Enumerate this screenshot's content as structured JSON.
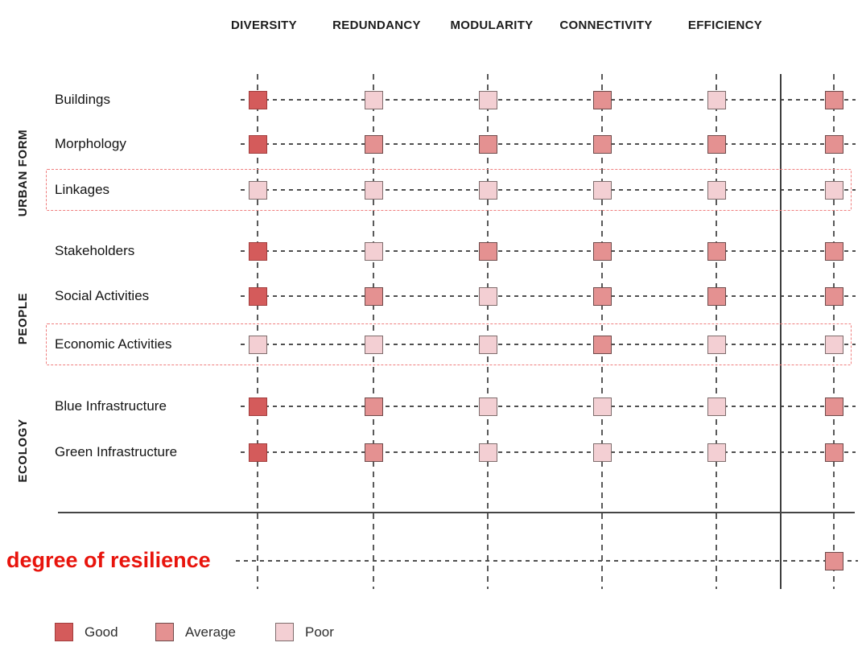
{
  "colors": {
    "good": {
      "fill": "#d45b5b",
      "border": "#a13e3d"
    },
    "average": {
      "fill": "#e49191",
      "border": "#6e4a4a"
    },
    "poor": {
      "fill": "#f3cfd3",
      "border": "#7e6c6c"
    },
    "highlight_box": "#ef7e7e",
    "degree_text": "#e8140c"
  },
  "chart_data": {
    "type": "heatmap",
    "columns": [
      "DIVERSITY",
      "REDUNDANCY",
      "MODULARITY",
      "CONNECTIVITY",
      "EFFICIENCY"
    ],
    "extra_column_label": "degree of resilience",
    "groups": [
      {
        "label": "URBAN FORM",
        "rows": [
          {
            "label": "Buildings",
            "highlighted": false,
            "values": [
              "good",
              "poor",
              "poor",
              "average",
              "poor"
            ],
            "resilience": "average"
          },
          {
            "label": "Morphology",
            "highlighted": false,
            "values": [
              "good",
              "average",
              "average",
              "average",
              "average"
            ],
            "resilience": "average"
          },
          {
            "label": "Linkages",
            "highlighted": true,
            "values": [
              "poor",
              "poor",
              "poor",
              "poor",
              "poor"
            ],
            "resilience": "poor"
          }
        ]
      },
      {
        "label": "PEOPLE",
        "rows": [
          {
            "label": "Stakeholders",
            "highlighted": false,
            "values": [
              "good",
              "poor",
              "average",
              "average",
              "average"
            ],
            "resilience": "average"
          },
          {
            "label": "Social Activities",
            "highlighted": false,
            "values": [
              "good",
              "average",
              "poor",
              "average",
              "average"
            ],
            "resilience": "average"
          },
          {
            "label": "Economic Activities",
            "highlighted": true,
            "values": [
              "poor",
              "poor",
              "poor",
              "average",
              "poor"
            ],
            "resilience": "poor"
          }
        ]
      },
      {
        "label": "ECOLOGY",
        "rows": [
          {
            "label": "Blue Infrastructure",
            "highlighted": false,
            "values": [
              "good",
              "average",
              "poor",
              "poor",
              "poor"
            ],
            "resilience": "average"
          },
          {
            "label": "Green Infrastructure",
            "highlighted": false,
            "values": [
              "good",
              "average",
              "poor",
              "poor",
              "poor"
            ],
            "resilience": "average"
          }
        ]
      }
    ],
    "degree_row": {
      "label": "degree of resilience",
      "value": "average"
    },
    "legend": [
      {
        "label": "Good",
        "key": "good"
      },
      {
        "label": "Average",
        "key": "average"
      },
      {
        "label": "Poor",
        "key": "poor"
      }
    ]
  }
}
